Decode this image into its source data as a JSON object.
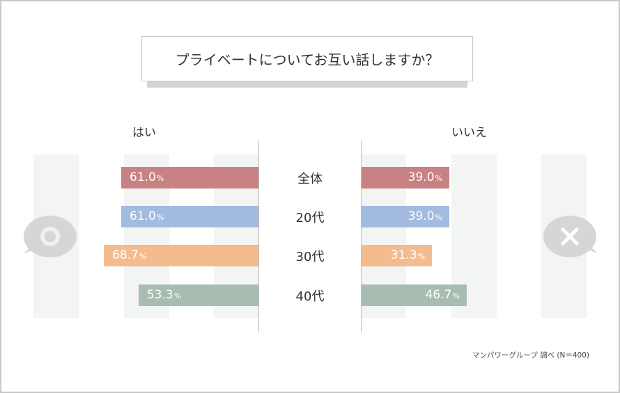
{
  "title": "プライベートについてお互い話しますか？",
  "chart_data": {
    "type": "bar",
    "orientation": "horizontal-diverging",
    "categories": [
      "全体",
      "20代",
      "30代",
      "40代"
    ],
    "series": [
      {
        "name": "はい",
        "values": [
          61.0,
          61.0,
          68.7,
          53.3
        ]
      },
      {
        "name": "いいえ",
        "values": [
          39.0,
          39.0,
          31.3,
          46.7
        ]
      }
    ],
    "value_labels_left": [
      "61.0",
      "61.0",
      "68.7",
      "53.3"
    ],
    "value_labels_right": [
      "39.0",
      "39.0",
      "31.3",
      "46.7"
    ],
    "unit": "%",
    "colors": [
      "#c88283",
      "#a3bbde",
      "#f4bc8e",
      "#a9bcb2"
    ],
    "xlim": [
      0,
      100
    ],
    "grid": false
  },
  "labels": {
    "yes": "はい",
    "no": "いいえ"
  },
  "icons": {
    "yes": "circle-speech-bubble-icon",
    "no": "cross-speech-bubble-icon"
  },
  "note": "マンパワーグループ 調べ (N＝400)"
}
